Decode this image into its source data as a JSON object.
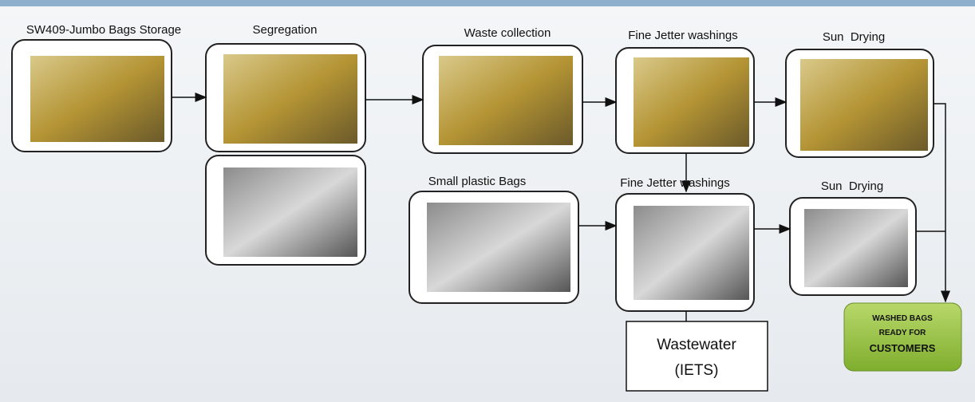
{
  "nodes": [
    {
      "label": "SW409-Jumbo Bags Storage"
    },
    {
      "label": "Segregation"
    },
    {
      "label": "Waste collection"
    },
    {
      "label": "Fine Jetter washings"
    },
    {
      "label": "Sun  Drying"
    },
    {
      "label": "Small plastic Bags"
    },
    {
      "label": "Fine Jetter washings"
    },
    {
      "label": "Sun  Drying"
    }
  ],
  "wastewater": {
    "lines": [
      "Wastewater",
      "(IETS)"
    ]
  },
  "output": {
    "lines": [
      "WASHED BAGS",
      "READY FOR",
      "CUSTOMERS"
    ]
  }
}
